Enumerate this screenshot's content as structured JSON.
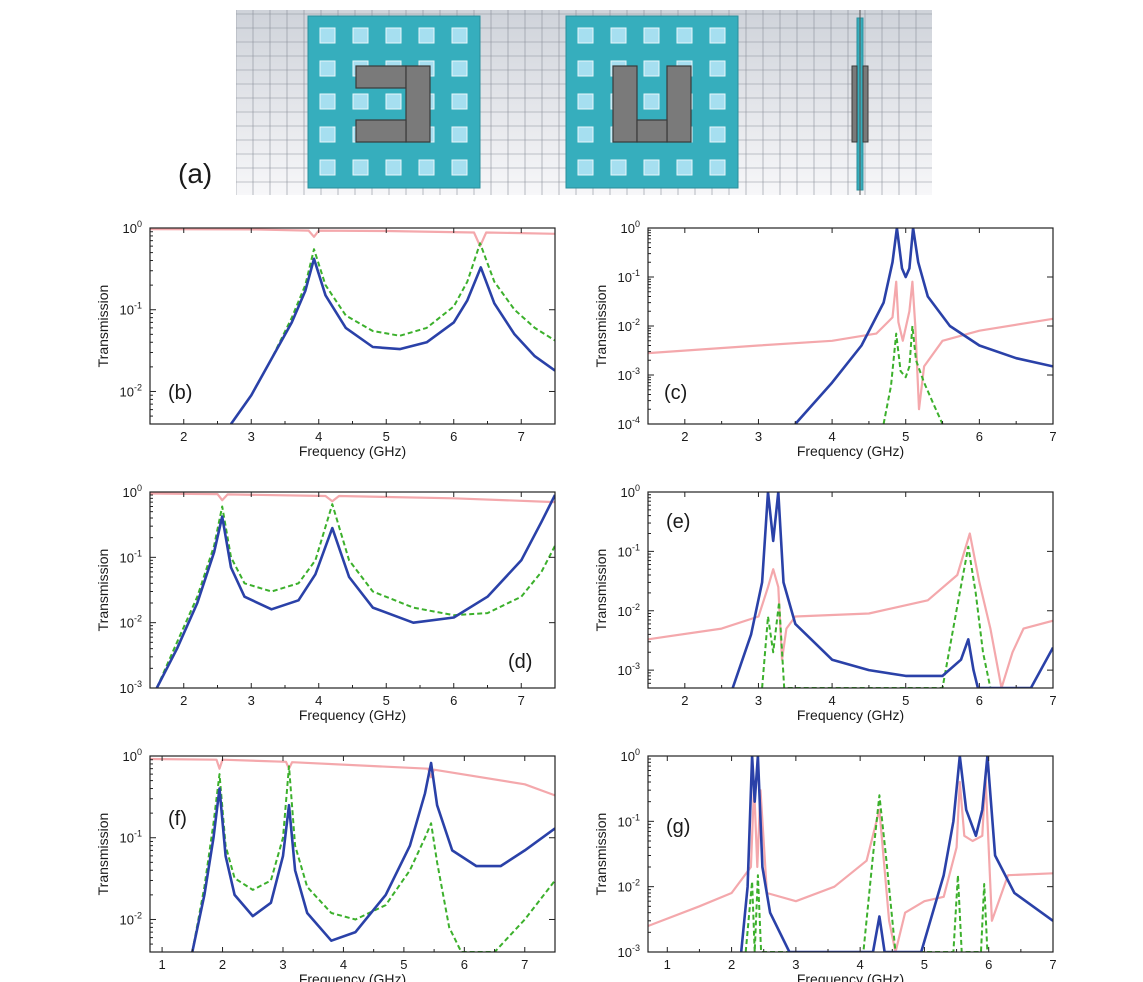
{
  "header": {
    "label": "(a)"
  },
  "colors": {
    "pink": "#f4a8ac",
    "blue": "#2a41a8",
    "green": "#3cb02c",
    "teal": "#36aebd",
    "hole": "#a6dff0",
    "metal": "#7a7a7a"
  },
  "chart_data": [
    {
      "id": "b",
      "label": "(b)",
      "type": "line",
      "xlabel": "Frequency (GHz)",
      "ylabel": "Transmission",
      "yscale": "log",
      "xlim": [
        1.5,
        7.5
      ],
      "ylim": [
        0.004,
        1
      ],
      "xticks": [
        "2",
        "3",
        "4",
        "5",
        "6",
        "7"
      ],
      "yticks": [
        "10^0",
        "10^-1",
        "10^-2"
      ],
      "series": [
        {
          "color": "pink",
          "style": "solid",
          "x": [
            1.5,
            3.0,
            3.85,
            3.93,
            4.0,
            5.0,
            6.3,
            6.39,
            6.48,
            7.5
          ],
          "y": [
            0.97,
            0.96,
            0.93,
            0.78,
            0.93,
            0.92,
            0.88,
            0.6,
            0.88,
            0.85
          ]
        },
        {
          "color": "blue",
          "style": "solid",
          "x": [
            2.7,
            3.0,
            3.3,
            3.6,
            3.8,
            3.93,
            4.1,
            4.4,
            4.8,
            5.2,
            5.6,
            6.0,
            6.2,
            6.4,
            6.6,
            6.9,
            7.2,
            7.5
          ],
          "y": [
            0.004,
            0.009,
            0.025,
            0.07,
            0.17,
            0.42,
            0.15,
            0.06,
            0.035,
            0.033,
            0.04,
            0.07,
            0.13,
            0.33,
            0.12,
            0.05,
            0.027,
            0.018
          ]
        },
        {
          "color": "green",
          "style": "dashed",
          "x": [
            2.7,
            3.0,
            3.3,
            3.6,
            3.8,
            3.93,
            4.1,
            4.4,
            4.8,
            5.2,
            5.6,
            6.0,
            6.2,
            6.39,
            6.6,
            6.9,
            7.2,
            7.5
          ],
          "y": [
            0.004,
            0.009,
            0.025,
            0.08,
            0.2,
            0.55,
            0.2,
            0.085,
            0.055,
            0.048,
            0.06,
            0.11,
            0.22,
            0.65,
            0.22,
            0.1,
            0.06,
            0.042
          ]
        }
      ]
    },
    {
      "id": "c",
      "label": "(c)",
      "type": "line",
      "xlabel": "Frequency (GHz)",
      "ylabel": "Transmission",
      "yscale": "log",
      "xlim": [
        1.5,
        7
      ],
      "ylim": [
        0.0001,
        1
      ],
      "xticks": [
        "2",
        "3",
        "4",
        "5",
        "6",
        "7"
      ],
      "yticks": [
        "10^0",
        "10^-1",
        "10^-2",
        "10^-3",
        "10^-4"
      ],
      "series": [
        {
          "color": "pink",
          "style": "solid",
          "x": [
            1.5,
            3.0,
            4.0,
            4.6,
            4.82,
            4.87,
            4.9,
            4.96,
            5.05,
            5.09,
            5.13,
            5.18,
            5.25,
            5.5,
            6.0,
            7.0
          ],
          "y": [
            0.0028,
            0.004,
            0.005,
            0.007,
            0.015,
            0.08,
            0.012,
            0.005,
            0.02,
            0.08,
            0.01,
            0.0002,
            0.0015,
            0.005,
            0.008,
            0.014
          ]
        },
        {
          "color": "blue",
          "style": "solid",
          "x": [
            3.5,
            4.0,
            4.4,
            4.7,
            4.82,
            4.88,
            4.95,
            5.0,
            5.05,
            5.1,
            5.17,
            5.3,
            5.6,
            6.0,
            6.5,
            7.0
          ],
          "y": [
            0.0001,
            0.0007,
            0.004,
            0.03,
            0.2,
            1.0,
            0.15,
            0.1,
            0.15,
            1.0,
            0.2,
            0.04,
            0.01,
            0.004,
            0.0022,
            0.0015
          ]
        },
        {
          "color": "green",
          "style": "dashed",
          "x": [
            4.7,
            4.8,
            4.87,
            4.93,
            5.0,
            5.05,
            5.09,
            5.14,
            5.25,
            5.38,
            5.5
          ],
          "y": [
            0.0001,
            0.0006,
            0.007,
            0.0012,
            0.0009,
            0.0015,
            0.01,
            0.002,
            0.0007,
            0.00025,
            0.0001
          ]
        }
      ]
    },
    {
      "id": "d",
      "label": "(d)",
      "type": "line",
      "xlabel": "Frequency (GHz)",
      "ylabel": "Transmission",
      "yscale": "log",
      "xlim": [
        1.5,
        7.5
      ],
      "ylim": [
        0.001,
        1
      ],
      "xticks": [
        "2",
        "3",
        "4",
        "5",
        "6",
        "7"
      ],
      "yticks": [
        "10^0",
        "10^-1",
        "10^-2",
        "10^-3"
      ],
      "series": [
        {
          "color": "pink",
          "style": "solid",
          "x": [
            1.5,
            2.5,
            2.57,
            2.65,
            4.1,
            4.2,
            4.3,
            6.0,
            7.5
          ],
          "y": [
            0.95,
            0.93,
            0.75,
            0.92,
            0.87,
            0.72,
            0.87,
            0.8,
            0.7
          ]
        },
        {
          "color": "blue",
          "style": "solid",
          "x": [
            1.6,
            1.9,
            2.2,
            2.45,
            2.57,
            2.7,
            2.9,
            3.3,
            3.7,
            3.95,
            4.2,
            4.45,
            4.8,
            5.4,
            6.0,
            6.5,
            7.0,
            7.3,
            7.5
          ],
          "y": [
            0.001,
            0.004,
            0.02,
            0.12,
            0.42,
            0.07,
            0.025,
            0.016,
            0.022,
            0.055,
            0.28,
            0.05,
            0.017,
            0.01,
            0.012,
            0.025,
            0.09,
            0.35,
            0.9
          ]
        },
        {
          "color": "green",
          "style": "dashed",
          "x": [
            1.6,
            1.9,
            2.2,
            2.45,
            2.57,
            2.7,
            2.9,
            3.3,
            3.7,
            3.95,
            4.2,
            4.45,
            4.8,
            5.4,
            6.0,
            6.5,
            7.0,
            7.3,
            7.5
          ],
          "y": [
            0.001,
            0.005,
            0.025,
            0.15,
            0.6,
            0.1,
            0.04,
            0.03,
            0.04,
            0.09,
            0.65,
            0.09,
            0.03,
            0.017,
            0.013,
            0.014,
            0.025,
            0.06,
            0.15
          ]
        }
      ]
    },
    {
      "id": "e",
      "label": "(e)",
      "type": "line",
      "xlabel": "Frequency (GHz)",
      "ylabel": "Transmission",
      "yscale": "log",
      "xlim": [
        1.5,
        7
      ],
      "ylim": [
        0.0005,
        1
      ],
      "xticks": [
        "2",
        "3",
        "4",
        "5",
        "6",
        "7"
      ],
      "yticks": [
        "10^0",
        "10^-1",
        "10^-2",
        "10^-3"
      ],
      "series": [
        {
          "color": "pink",
          "style": "solid",
          "x": [
            1.5,
            2.5,
            3.0,
            3.13,
            3.2,
            3.27,
            3.32,
            3.38,
            3.5,
            4.5,
            5.3,
            5.7,
            5.87,
            6.0,
            6.15,
            6.3,
            6.45,
            6.6,
            7.0
          ],
          "y": [
            0.0033,
            0.005,
            0.008,
            0.025,
            0.05,
            0.025,
            0.0015,
            0.005,
            0.008,
            0.009,
            0.015,
            0.04,
            0.2,
            0.03,
            0.005,
            0.0005,
            0.002,
            0.005,
            0.0068
          ]
        },
        {
          "color": "blue",
          "style": "solid",
          "x": [
            2.65,
            2.9,
            3.05,
            3.13,
            3.2,
            3.27,
            3.34,
            3.5,
            4.0,
            4.5,
            5.0,
            5.5,
            5.75,
            5.85,
            5.92,
            5.98,
            6.7,
            7.0
          ],
          "y": [
            0.0005,
            0.004,
            0.03,
            1.0,
            0.15,
            1.0,
            0.03,
            0.006,
            0.0015,
            0.001,
            0.0008,
            0.0008,
            0.0015,
            0.0033,
            0.001,
            0.0005,
            0.0005,
            0.0024
          ]
        },
        {
          "color": "green",
          "style": "dashed",
          "x": [
            3.05,
            3.13,
            3.2,
            3.28,
            3.35,
            5.5,
            5.7,
            5.85,
            5.95,
            6.05,
            6.15
          ],
          "y": [
            0.0005,
            0.008,
            0.002,
            0.014,
            0.0005,
            0.0005,
            0.012,
            0.12,
            0.02,
            0.002,
            0.0005
          ]
        }
      ]
    },
    {
      "id": "f",
      "label": "(f)",
      "type": "line",
      "xlabel": "Frequency (GHz)",
      "ylabel": "Transmission",
      "yscale": "log",
      "xlim": [
        0.8,
        7.5
      ],
      "ylim": [
        0.004,
        1
      ],
      "xticks": [
        "1",
        "2",
        "3",
        "4",
        "5",
        "6",
        "7"
      ],
      "yticks": [
        "10^0",
        "10^-1",
        "10^-2"
      ],
      "series": [
        {
          "color": "pink",
          "style": "solid",
          "x": [
            0.8,
            1.9,
            1.95,
            2.0,
            3.05,
            3.1,
            3.15,
            5.4,
            5.45,
            5.5,
            7.0,
            7.5
          ],
          "y": [
            0.92,
            0.9,
            0.7,
            0.9,
            0.85,
            0.7,
            0.84,
            0.7,
            0.55,
            0.68,
            0.45,
            0.33
          ]
        },
        {
          "color": "blue",
          "style": "solid",
          "x": [
            1.5,
            1.7,
            1.85,
            1.95,
            2.05,
            2.2,
            2.5,
            2.8,
            3.0,
            3.1,
            3.2,
            3.4,
            3.8,
            4.2,
            4.7,
            5.1,
            5.35,
            5.45,
            5.55,
            5.8,
            6.2,
            6.6,
            7.0,
            7.5
          ],
          "y": [
            0.004,
            0.02,
            0.1,
            0.4,
            0.06,
            0.02,
            0.011,
            0.016,
            0.06,
            0.25,
            0.04,
            0.012,
            0.0055,
            0.007,
            0.02,
            0.08,
            0.35,
            0.82,
            0.25,
            0.07,
            0.045,
            0.045,
            0.07,
            0.13
          ]
        },
        {
          "color": "green",
          "style": "dashed",
          "x": [
            1.5,
            1.7,
            1.85,
            1.95,
            2.05,
            2.2,
            2.5,
            2.8,
            3.0,
            3.1,
            3.2,
            3.4,
            3.8,
            4.2,
            4.7,
            5.1,
            5.35,
            5.45,
            5.55,
            5.75,
            5.95,
            6.5,
            7.0,
            7.5
          ],
          "y": [
            0.004,
            0.025,
            0.15,
            0.6,
            0.08,
            0.032,
            0.023,
            0.03,
            0.1,
            0.75,
            0.08,
            0.025,
            0.012,
            0.01,
            0.015,
            0.04,
            0.1,
            0.15,
            0.05,
            0.008,
            0.004,
            0.004,
            0.01,
            0.03
          ]
        }
      ]
    },
    {
      "id": "g",
      "label": "(g)",
      "type": "line",
      "xlabel": "Frequency (GHz)",
      "ylabel": "Transmission",
      "yscale": "log",
      "xlim": [
        0.7,
        7
      ],
      "ylim": [
        0.001,
        1
      ],
      "xticks": [
        "1",
        "2",
        "3",
        "4",
        "5",
        "6",
        "7"
      ],
      "yticks": [
        "10^0",
        "10^-1",
        "10^-2",
        "10^-3"
      ],
      "series": [
        {
          "color": "pink",
          "style": "solid",
          "x": [
            0.7,
            1.5,
            2.0,
            2.3,
            2.35,
            2.4,
            2.45,
            2.55,
            3.0,
            3.6,
            4.1,
            4.3,
            4.45,
            4.55,
            4.7,
            5.0,
            5.3,
            5.5,
            5.55,
            5.62,
            5.75,
            5.9,
            5.95,
            6.05,
            6.3,
            7.0
          ],
          "y": [
            0.0025,
            0.005,
            0.008,
            0.02,
            0.35,
            0.02,
            0.3,
            0.008,
            0.006,
            0.01,
            0.025,
            0.15,
            0.003,
            0.001,
            0.004,
            0.006,
            0.007,
            0.04,
            0.4,
            0.06,
            0.05,
            0.06,
            0.5,
            0.003,
            0.015,
            0.016
          ]
        },
        {
          "color": "blue",
          "style": "solid",
          "x": [
            2.15,
            2.25,
            2.32,
            2.36,
            2.41,
            2.48,
            2.6,
            2.9,
            4.2,
            4.3,
            4.38,
            4.95,
            5.3,
            5.45,
            5.55,
            5.65,
            5.8,
            5.9,
            5.98,
            6.1,
            6.4,
            7.0
          ],
          "y": [
            0.001,
            0.01,
            1.0,
            0.2,
            1.0,
            0.02,
            0.004,
            0.001,
            0.001,
            0.0035,
            0.001,
            0.001,
            0.015,
            0.1,
            1.0,
            0.15,
            0.06,
            0.15,
            1.0,
            0.03,
            0.008,
            0.003
          ]
        },
        {
          "color": "green",
          "style": "dashed",
          "x": [
            2.22,
            2.32,
            2.36,
            2.41,
            2.46,
            4.05,
            4.2,
            4.3,
            4.4,
            4.55,
            5.45,
            5.52,
            5.58,
            5.88,
            5.93,
            5.98
          ],
          "y": [
            0.001,
            0.012,
            0.001,
            0.015,
            0.001,
            0.001,
            0.03,
            0.25,
            0.03,
            0.001,
            0.001,
            0.015,
            0.001,
            0.001,
            0.011,
            0.001
          ]
        }
      ]
    }
  ]
}
